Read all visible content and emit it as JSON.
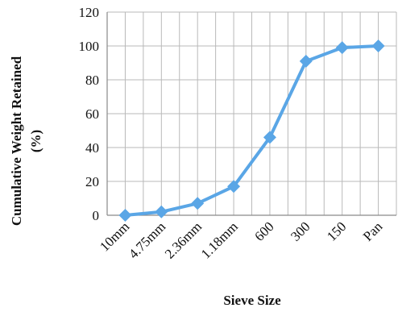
{
  "chart_data": {
    "type": "line",
    "title": "",
    "xlabel": "Sieve Size",
    "ylabel_line1": "Cumulative Weight Retained",
    "ylabel_line2": "(%)",
    "categories": [
      "10mm",
      "4.75mm",
      "2.36mm",
      "1.18mm",
      "600",
      "300",
      "150",
      "Pan"
    ],
    "series": [
      {
        "values": [
          0,
          2,
          7,
          17,
          46,
          91,
          99,
          100
        ]
      }
    ],
    "ylim": [
      0,
      120
    ],
    "yticks": [
      "0",
      "20",
      "40",
      "60",
      "80",
      "100",
      "120"
    ],
    "grid": true,
    "legend": "none",
    "colors": {
      "line": "#5aa6e6",
      "marker": "#5aa6e6",
      "grid": "#b9b9b9",
      "axis": "#8a8a8a"
    },
    "marker": "diamond-icon"
  }
}
